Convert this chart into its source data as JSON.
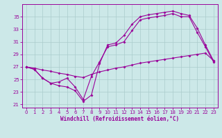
{
  "xlabel": "Windchill (Refroidissement éolien,°C)",
  "bg_color": "#cce8e8",
  "line_color": "#990099",
  "grid_color": "#aacccc",
  "xlim": [
    -0.5,
    23.5
  ],
  "ylim": [
    20.5,
    37.0
  ],
  "yticks": [
    21,
    23,
    25,
    27,
    29,
    31,
    33,
    35
  ],
  "xticks": [
    0,
    1,
    2,
    3,
    4,
    5,
    6,
    7,
    8,
    9,
    10,
    11,
    12,
    13,
    14,
    15,
    16,
    17,
    18,
    19,
    20,
    21,
    22,
    23
  ],
  "series1_x": [
    0,
    1,
    2,
    3,
    4,
    5,
    6,
    7,
    8,
    9,
    10,
    11,
    12,
    13,
    14,
    15,
    16,
    17,
    18,
    19,
    20,
    21,
    22,
    23
  ],
  "series1_y": [
    27.0,
    26.6,
    25.2,
    24.4,
    24.0,
    23.8,
    23.2,
    21.5,
    22.5,
    27.5,
    30.5,
    30.8,
    32.0,
    33.8,
    35.0,
    35.3,
    35.5,
    35.7,
    35.9,
    35.5,
    35.2,
    33.2,
    30.5,
    28.0
  ],
  "series2_x": [
    0,
    1,
    2,
    3,
    4,
    5,
    6,
    7,
    8,
    9,
    10,
    11,
    12,
    13,
    14,
    15,
    16,
    17,
    18,
    19,
    20,
    21,
    22,
    23
  ],
  "series2_y": [
    27.0,
    26.6,
    25.2,
    24.4,
    24.6,
    25.2,
    23.8,
    21.8,
    25.5,
    27.8,
    30.2,
    30.5,
    31.0,
    32.8,
    34.5,
    34.8,
    35.0,
    35.2,
    35.5,
    35.0,
    35.0,
    32.5,
    30.2,
    27.8
  ],
  "series3_x": [
    0,
    1,
    2,
    3,
    4,
    5,
    6,
    7,
    8,
    9,
    10,
    11,
    12,
    13,
    14,
    15,
    16,
    17,
    18,
    19,
    20,
    21,
    22,
    23
  ],
  "series3_y": [
    27.0,
    26.8,
    26.5,
    26.3,
    26.0,
    25.8,
    25.5,
    25.3,
    25.8,
    26.2,
    26.5,
    26.8,
    27.0,
    27.3,
    27.6,
    27.8,
    28.0,
    28.2,
    28.4,
    28.6,
    28.8,
    29.0,
    29.2,
    28.0
  ]
}
